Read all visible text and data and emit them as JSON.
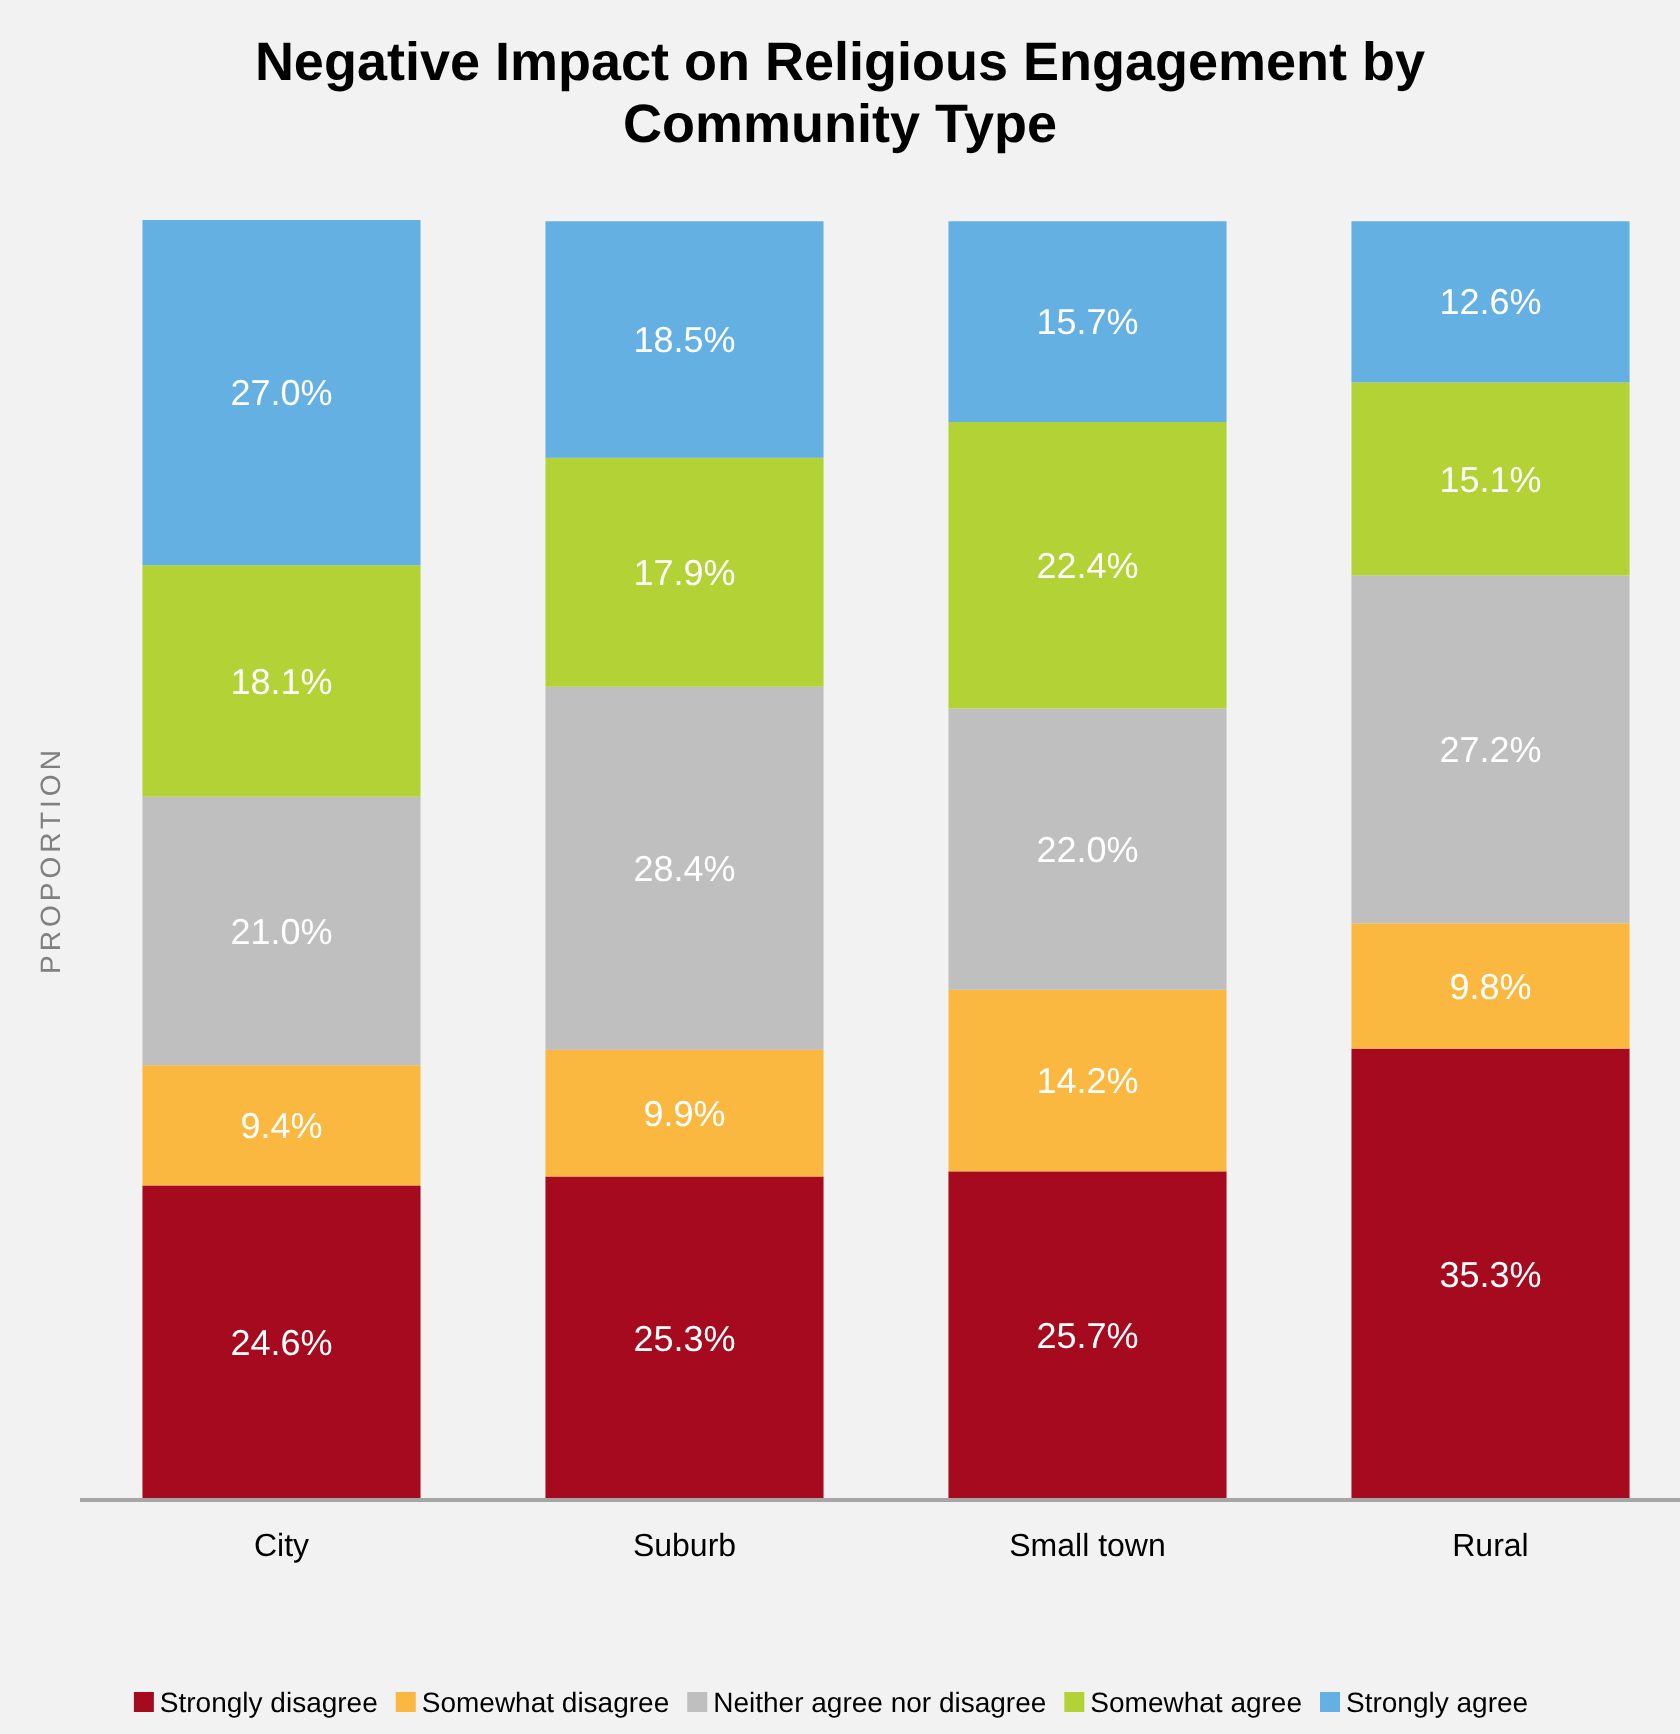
{
  "chart_data": {
    "type": "bar",
    "title": "Negative Impact on Religious Engagement by Community Type",
    "ylabel": "PROPORTION",
    "categories": [
      "City",
      "Suburb",
      "Small town",
      "Rural"
    ],
    "stacked": true,
    "legend": "bottom",
    "series": [
      {
        "name": "Strongly disagree",
        "color": "#a50a1e",
        "values": [
          24.6,
          25.3,
          25.7,
          35.3
        ],
        "value_labels": [
          "24.6%",
          "25.3%",
          "25.7%",
          "35.3%"
        ]
      },
      {
        "name": "Somewhat disagree",
        "color": "#fbb840",
        "values": [
          9.4,
          9.9,
          14.2,
          9.8
        ],
        "value_labels": [
          "9.4%",
          "9.9%",
          "14.2%",
          "9.8%"
        ]
      },
      {
        "name": "Neither agree nor disagree",
        "color": "#bfbfbf",
        "values": [
          21.0,
          28.4,
          22.0,
          27.2
        ],
        "value_labels": [
          "21.0%",
          "28.4%",
          "22.0%",
          "27.2%"
        ]
      },
      {
        "name": "Somewhat agree",
        "color": "#b2d235",
        "values": [
          18.1,
          17.9,
          22.4,
          15.1
        ],
        "value_labels": [
          "18.1%",
          "17.9%",
          "22.4%",
          "15.1%"
        ]
      },
      {
        "name": "Strongly agree",
        "color": "#64b0e2",
        "values": [
          27.0,
          18.5,
          15.7,
          12.6
        ],
        "value_labels": [
          "27.0%",
          "18.5%",
          "15.7%",
          "12.6%"
        ]
      }
    ]
  }
}
